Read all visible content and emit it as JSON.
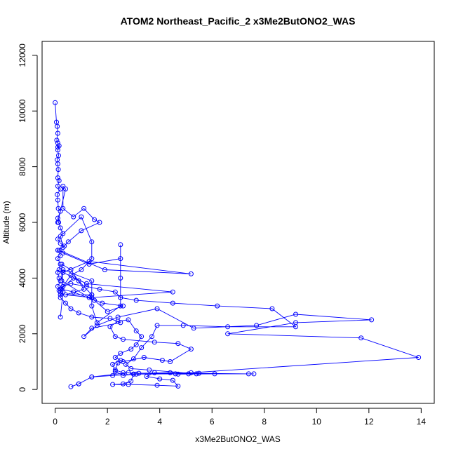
{
  "chart_data": {
    "type": "line",
    "title": "ATOM2 Northeast_Pacific_2 x3Me2ButONO2_WAS",
    "xlabel": "x3Me2ButONO2_WAS",
    "ylabel": "Altitude (m)",
    "xlim": [
      -0.5,
      14.5
    ],
    "ylim": [
      -500,
      12500
    ],
    "x_ticks": [
      0,
      2,
      4,
      6,
      8,
      10,
      12,
      14
    ],
    "y_ticks": [
      0,
      2000,
      4000,
      6000,
      8000,
      10000,
      12000
    ],
    "grid": false,
    "legend": "none",
    "marker": "open-circle",
    "colors": {
      "series": "#0000ff",
      "axis": "#000000"
    },
    "series": [
      {
        "points": [
          [
            0.6,
            100
          ],
          [
            0.9,
            200
          ],
          [
            1.4,
            450
          ],
          [
            2.2,
            500
          ],
          [
            3.1,
            550
          ],
          [
            4.6,
            560
          ],
          [
            5.5,
            580
          ],
          [
            7.4,
            560
          ],
          [
            5.1,
            560
          ],
          [
            4.4,
            600
          ],
          [
            3.2,
            580
          ],
          [
            2.6,
            600
          ],
          [
            2.3,
            700
          ],
          [
            2.4,
            950
          ],
          [
            2.6,
            1000
          ],
          [
            3.4,
            1150
          ],
          [
            4.1,
            1050
          ],
          [
            4.4,
            1000
          ],
          [
            5.2,
            1450
          ],
          [
            4.7,
            1650
          ],
          [
            3.8,
            1700
          ],
          [
            2.6,
            1800
          ],
          [
            2.3,
            1900
          ],
          [
            2.1,
            2250
          ],
          [
            2.4,
            2450
          ],
          [
            2.8,
            2500
          ],
          [
            3.1,
            2100
          ],
          [
            3.3,
            1900
          ],
          [
            3.1,
            1600
          ],
          [
            2.9,
            1450
          ],
          [
            2.5,
            1300
          ],
          [
            2.3,
            1150
          ],
          [
            2.5,
            1050
          ],
          [
            2.2,
            900
          ],
          [
            2.3,
            650
          ],
          [
            2.6,
            500
          ],
          [
            3.0,
            550
          ],
          [
            2.9,
            300
          ],
          [
            2.6,
            200
          ],
          [
            2.2,
            180
          ],
          [
            2.8,
            180
          ],
          [
            3.9,
            150
          ],
          [
            4.7,
            120
          ],
          [
            4.5,
            330
          ],
          [
            4.0,
            380
          ],
          [
            3.5,
            470
          ],
          [
            3.8,
            600
          ],
          [
            4.7,
            550
          ],
          [
            6.1,
            560
          ],
          [
            7.6,
            560
          ],
          [
            5.4,
            560
          ],
          [
            3.6,
            700
          ],
          [
            2.9,
            750
          ],
          [
            2.7,
            900
          ],
          [
            3.0,
            1100
          ],
          [
            3.3,
            1500
          ],
          [
            3.7,
            1900
          ],
          [
            3.9,
            2300
          ],
          [
            4.9,
            2300
          ],
          [
            6.6,
            2250
          ],
          [
            9.2,
            2250
          ],
          [
            8.3,
            2900
          ],
          [
            6.2,
            3000
          ],
          [
            4.5,
            3100
          ],
          [
            3.1,
            3200
          ],
          [
            2.5,
            3300
          ],
          [
            2.3,
            3500
          ],
          [
            1.7,
            3600
          ],
          [
            1.2,
            3700
          ],
          [
            0.6,
            3800
          ],
          [
            0.3,
            3700
          ],
          [
            0.2,
            3500
          ],
          [
            0.2,
            3300
          ],
          [
            0.4,
            3100
          ],
          [
            0.6,
            2900
          ],
          [
            0.9,
            2750
          ],
          [
            1.4,
            2600
          ],
          [
            2.1,
            2550
          ],
          [
            2.5,
            2400
          ],
          [
            1.4,
            2200
          ],
          [
            1.1,
            1900
          ],
          [
            1.6,
            2300
          ],
          [
            2.4,
            2600
          ],
          [
            3.9,
            2900
          ],
          [
            5.3,
            2200
          ],
          [
            7.7,
            2300
          ],
          [
            9.2,
            2700
          ],
          [
            12.1,
            2500
          ],
          [
            9.2,
            2400
          ],
          [
            6.6,
            2000
          ],
          [
            11.7,
            1850
          ],
          [
            13.9,
            1150
          ],
          [
            5.2,
            600
          ],
          [
            3.0,
            550
          ],
          [
            2.8,
            600
          ],
          [
            1.4,
            450
          ],
          [
            0.9,
            200
          ]
        ]
      },
      {
        "points": [
          [
            0.0,
            10300
          ],
          [
            0.05,
            9600
          ],
          [
            0.08,
            9450
          ],
          [
            0.1,
            9200
          ],
          [
            0.06,
            8950
          ],
          [
            0.1,
            8850
          ],
          [
            0.1,
            8700
          ],
          [
            0.15,
            8750
          ],
          [
            0.1,
            8600
          ],
          [
            0.13,
            8400
          ],
          [
            0.08,
            8250
          ],
          [
            0.1,
            8100
          ],
          [
            0.12,
            7900
          ],
          [
            0.1,
            7600
          ],
          [
            0.15,
            7500
          ],
          [
            0.1,
            7300
          ],
          [
            0.2,
            7200
          ],
          [
            0.08,
            7000
          ],
          [
            0.1,
            6800
          ],
          [
            0.12,
            6500
          ],
          [
            0.2,
            6400
          ],
          [
            0.1,
            6150
          ],
          [
            0.13,
            6000
          ],
          [
            0.2,
            5800
          ],
          [
            0.3,
            5600
          ],
          [
            0.1,
            5400
          ],
          [
            0.2,
            5250
          ],
          [
            0.35,
            5150
          ],
          [
            0.1,
            5000
          ],
          [
            0.2,
            4800
          ],
          [
            0.1,
            4700
          ],
          [
            0.2,
            4500
          ],
          [
            0.15,
            4300
          ],
          [
            0.1,
            4200
          ],
          [
            0.15,
            4000
          ],
          [
            0.2,
            3900
          ],
          [
            0.1,
            3700
          ],
          [
            0.2,
            3600
          ],
          [
            0.15,
            3550
          ]
        ]
      },
      {
        "points": [
          [
            0.1,
            6000
          ],
          [
            0.4,
            7200
          ],
          [
            0.3,
            7300
          ],
          [
            0.3,
            6500
          ],
          [
            0.7,
            6200
          ],
          [
            1.1,
            6500
          ],
          [
            1.5,
            6100
          ],
          [
            1.7,
            6000
          ],
          [
            1.0,
            5700
          ],
          [
            0.5,
            5300
          ],
          [
            0.3,
            5100
          ],
          [
            0.2,
            5500
          ],
          [
            1.0,
            6200
          ],
          [
            1.4,
            5300
          ],
          [
            1.4,
            4700
          ],
          [
            1.0,
            4300
          ],
          [
            0.6,
            4100
          ],
          [
            0.3,
            3700
          ],
          [
            0.2,
            3600
          ],
          [
            0.7,
            4000
          ],
          [
            0.9,
            3900
          ],
          [
            1.4,
            3400
          ],
          [
            1.4,
            3000
          ],
          [
            1.6,
            2400
          ],
          [
            2.5,
            3000
          ],
          [
            2.5,
            3300
          ],
          [
            2.5,
            4000
          ],
          [
            2.5,
            5200
          ],
          [
            2.5,
            4700
          ],
          [
            1.3,
            4500
          ],
          [
            0.3,
            4900
          ],
          [
            0.15,
            5000
          ],
          [
            1.9,
            4300
          ],
          [
            5.2,
            4150
          ],
          [
            1.3,
            4600
          ],
          [
            0.3,
            4200
          ],
          [
            1.2,
            3800
          ],
          [
            4.5,
            3500
          ],
          [
            1.4,
            3300
          ],
          [
            0.4,
            3400
          ],
          [
            1.1,
            3600
          ],
          [
            0.6,
            4300
          ],
          [
            0.25,
            4500
          ],
          [
            0.25,
            3900
          ],
          [
            1.3,
            3300
          ],
          [
            1.8,
            3100
          ],
          [
            2.6,
            3000
          ],
          [
            2.0,
            2800
          ],
          [
            1.5,
            3200
          ],
          [
            0.7,
            3500
          ],
          [
            0.25,
            3600
          ],
          [
            0.3,
            4300
          ],
          [
            1.4,
            3900
          ],
          [
            1.4,
            3400
          ],
          [
            0.2,
            3400
          ],
          [
            0.3,
            3500
          ],
          [
            0.2,
            2600
          ]
        ]
      }
    ]
  }
}
